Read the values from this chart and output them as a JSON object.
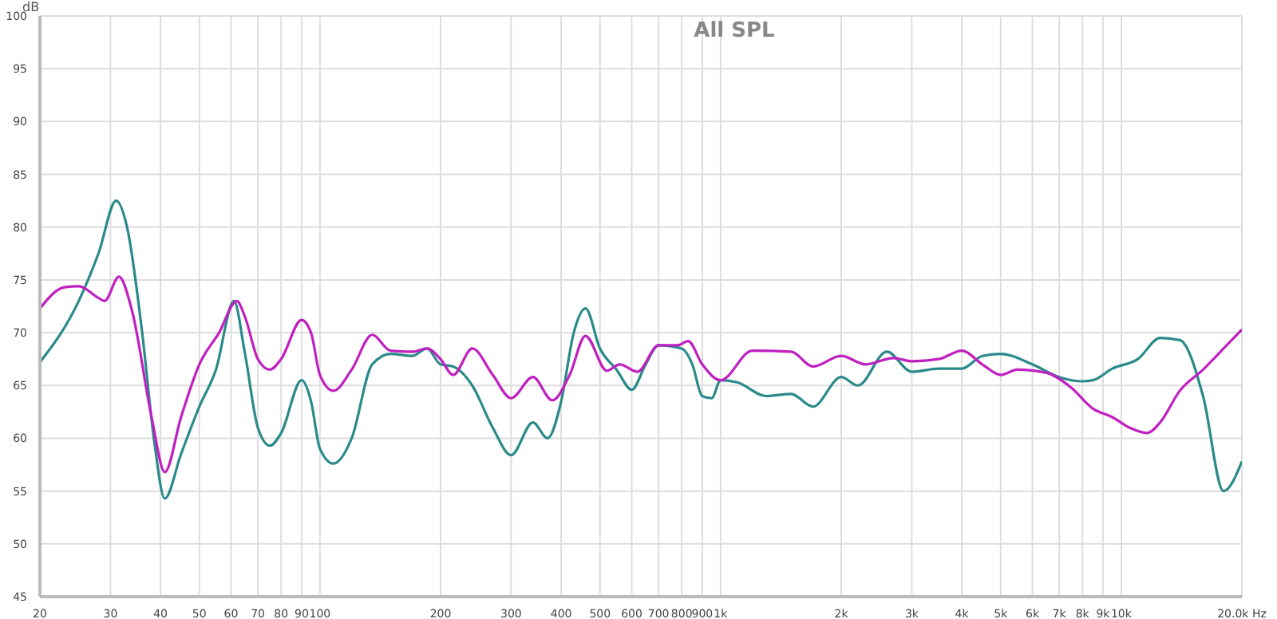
{
  "chart_data": {
    "type": "line",
    "title": "All SPL",
    "ylabel": "dB",
    "log": "x",
    "grid": true,
    "legend": false,
    "marker": "none",
    "line_style": "solid",
    "xlim": [
      20,
      20000
    ],
    "ylim": [
      45,
      100
    ],
    "xticks": [
      20,
      30,
      40,
      50,
      60,
      70,
      80,
      90,
      100,
      200,
      300,
      400,
      500,
      600,
      700,
      800,
      900,
      {
        "value": 1000,
        "label": "1k"
      },
      {
        "value": 2000,
        "label": "2k"
      },
      {
        "value": 3000,
        "label": "3k"
      },
      {
        "value": 4000,
        "label": "4k"
      },
      {
        "value": 5000,
        "label": "5k"
      },
      {
        "value": 6000,
        "label": "6k"
      },
      {
        "value": 7000,
        "label": "7k"
      },
      {
        "value": 8000,
        "label": "8k"
      },
      {
        "value": 9000,
        "label": "9k"
      },
      {
        "value": 10000,
        "label": "10k"
      },
      {
        "value": 20000,
        "label": "20.0k Hz"
      }
    ],
    "yticks": [
      45,
      50,
      55,
      60,
      65,
      70,
      75,
      80,
      85,
      90,
      95,
      100
    ],
    "series": [
      {
        "color": "#2a8a8a",
        "x": [
          20,
          25,
          28,
          31,
          33,
          36,
          38.5,
          41,
          45,
          50,
          55,
          61,
          65,
          70,
          75,
          80,
          90,
          95,
          100,
          108,
          120,
          135,
          150,
          170,
          185,
          200,
          215,
          240,
          270,
          300,
          340,
          370,
          400,
          430,
          460,
          500,
          550,
          600,
          650,
          700,
          800,
          850,
          900,
          950,
          1000,
          1100,
          1300,
          1500,
          1700,
          2000,
          2200,
          2600,
          3000,
          3500,
          4000,
          4500,
          5000,
          6000,
          7000,
          8000,
          8500,
          9500,
          11000,
          12500,
          14000,
          16000,
          18000,
          20000
        ],
        "values": [
          67.2,
          73,
          77.5,
          82.5,
          80,
          70,
          60,
          54.3,
          58.5,
          63,
          66.5,
          73,
          68,
          61,
          59.3,
          60.5,
          65.5,
          63.5,
          59,
          57.6,
          60,
          67,
          68,
          67.8,
          68.5,
          67,
          66.8,
          65,
          61,
          58.4,
          61.5,
          60,
          63.5,
          70,
          72.3,
          68.5,
          66.5,
          64.6,
          67,
          68.8,
          68.5,
          67,
          64,
          63.8,
          65.5,
          65.3,
          64,
          64.2,
          63,
          65.8,
          65,
          68.2,
          66.3,
          66.6,
          66.6,
          67.8,
          68,
          67,
          65.8,
          65.4,
          65.5,
          66.6,
          67.5,
          69.5,
          69.3,
          64,
          55,
          57.8
        ]
      },
      {
        "color": "#c020c0",
        "x": [
          20,
          23,
          25,
          28,
          29,
          31.5,
          34,
          38,
          41,
          45,
          50,
          56,
          62,
          65,
          70,
          75,
          80,
          90,
          95,
          100,
          108,
          120,
          135,
          150,
          170,
          185,
          200,
          215,
          240,
          270,
          300,
          340,
          380,
          420,
          460,
          520,
          560,
          620,
          700,
          780,
          830,
          900,
          1000,
          1200,
          1500,
          1700,
          2000,
          2300,
          2700,
          3000,
          3500,
          4000,
          4500,
          5000,
          5500,
          6500,
          7500,
          8500,
          9500,
          10500,
          11600,
          12500,
          14000,
          16000,
          18000,
          20000
        ],
        "values": [
          72.3,
          74.3,
          74.4,
          73.3,
          73,
          75.3,
          72,
          62,
          56.8,
          62,
          67,
          70,
          73,
          71.5,
          67.5,
          66.5,
          67.5,
          71.2,
          70,
          66,
          64.5,
          66.5,
          69.8,
          68.3,
          68.2,
          68.5,
          67.5,
          66,
          68.5,
          66,
          63.8,
          65.8,
          63.6,
          66,
          69.7,
          66.4,
          67,
          66.3,
          68.8,
          68.8,
          69.2,
          67,
          65.5,
          68.3,
          68.2,
          66.8,
          67.8,
          67,
          67.6,
          67.3,
          67.5,
          68.3,
          67,
          66,
          66.5,
          66.2,
          64.8,
          62.8,
          62,
          61,
          60.5,
          61.5,
          64.5,
          66.5,
          68.5,
          70.3
        ]
      }
    ]
  }
}
